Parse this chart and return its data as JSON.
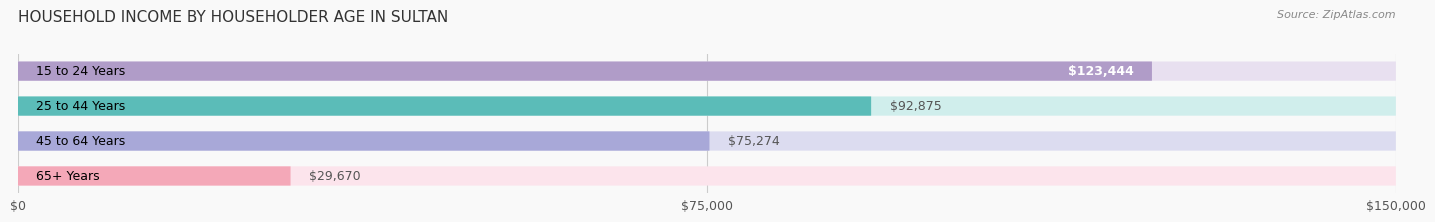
{
  "title": "HOUSEHOLD INCOME BY HOUSEHOLDER AGE IN SULTAN",
  "source": "Source: ZipAtlas.com",
  "categories": [
    "15 to 24 Years",
    "25 to 44 Years",
    "45 to 64 Years",
    "65+ Years"
  ],
  "values": [
    123444,
    92875,
    75274,
    29670
  ],
  "labels": [
    "$123,444",
    "$92,875",
    "$75,274",
    "$29,670"
  ],
  "bar_colors": [
    "#b09cc8",
    "#5bbcb8",
    "#a8a8d8",
    "#f4a8b8"
  ],
  "bg_colors": [
    "#e8e0f0",
    "#d0eeec",
    "#dcdcf0",
    "#fce4ec"
  ],
  "xlim": [
    0,
    150000
  ],
  "xticks": [
    0,
    75000,
    150000
  ],
  "xticklabels": [
    "$0",
    "$75,000",
    "$150,000"
  ],
  "title_fontsize": 11,
  "source_fontsize": 8,
  "label_fontsize": 9,
  "tick_fontsize": 9,
  "bar_height": 0.55,
  "background_color": "#f9f9f9",
  "grid_color": "#cccccc"
}
